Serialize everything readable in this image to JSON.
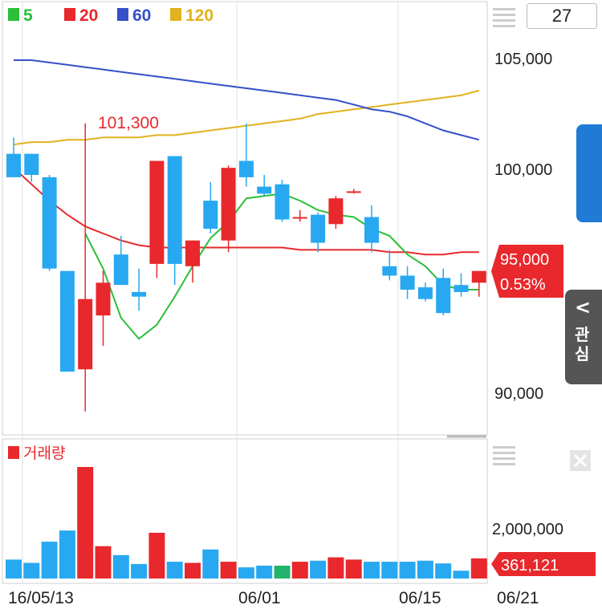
{
  "legend": [
    {
      "label": "5",
      "color": "#2bbf3a"
    },
    {
      "label": "20",
      "color": "#e8282c"
    },
    {
      "label": "60",
      "color": "#3550c8"
    },
    {
      "label": "120",
      "color": "#e0b21e"
    }
  ],
  "period_value": "27",
  "price_axis_labels": [
    "105,000",
    "100,000",
    "90,000"
  ],
  "high_marker": "101,300",
  "current_price": "95,000",
  "change_pct": "0.53%",
  "volume_label": "거래량",
  "volume_axis_label": "2,000,000",
  "current_volume": "361,121",
  "date_labels": [
    "16/05/13",
    "06/01",
    "06/15",
    "06/21"
  ],
  "side_tab_label": "관심",
  "colors": {
    "up": "#e8282c",
    "down": "#28a8f0",
    "flat": "#22b46a",
    "grid": "#d8d8d8"
  },
  "chart_data": {
    "type": "candlestick",
    "price_ylim": [
      88000,
      106500
    ],
    "candles": [
      {
        "o": 100000,
        "h": 100700,
        "l": 99000,
        "c": 99000
      },
      {
        "o": 100000,
        "h": 100000,
        "l": 98800,
        "c": 99100
      },
      {
        "o": 99000,
        "h": 99100,
        "l": 95000,
        "c": 95100
      },
      {
        "o": 95000,
        "h": 95000,
        "l": 90700,
        "c": 90700
      },
      {
        "o": 90800,
        "h": 101300,
        "l": 89000,
        "c": 93800
      },
      {
        "o": 93100,
        "h": 95000,
        "l": 91800,
        "c": 94500
      },
      {
        "o": 95700,
        "h": 96500,
        "l": 94400,
        "c": 94400
      },
      {
        "o": 94100,
        "h": 95100,
        "l": 93300,
        "c": 93900
      },
      {
        "o": 95300,
        "h": 99700,
        "l": 94700,
        "c": 99700
      },
      {
        "o": 99900,
        "h": 99900,
        "l": 94400,
        "c": 95300
      },
      {
        "o": 95200,
        "h": 96300,
        "l": 94500,
        "c": 96300
      },
      {
        "o": 98000,
        "h": 98800,
        "l": 96600,
        "c": 96800
      },
      {
        "o": 96300,
        "h": 99500,
        "l": 95800,
        "c": 99400
      },
      {
        "o": 99700,
        "h": 101300,
        "l": 98600,
        "c": 99000
      },
      {
        "o": 98600,
        "h": 99100,
        "l": 98200,
        "c": 98300
      },
      {
        "o": 98700,
        "h": 98900,
        "l": 97100,
        "c": 97200
      },
      {
        "o": 97300,
        "h": 97600,
        "l": 97100,
        "c": 97300
      },
      {
        "o": 97400,
        "h": 97500,
        "l": 95800,
        "c": 96200
      },
      {
        "o": 97000,
        "h": 98200,
        "l": 96800,
        "c": 98100
      },
      {
        "o": 98400,
        "h": 98500,
        "l": 98300,
        "c": 98400
      },
      {
        "o": 97300,
        "h": 97800,
        "l": 95800,
        "c": 96200
      },
      {
        "o": 95200,
        "h": 95900,
        "l": 94600,
        "c": 94800
      },
      {
        "o": 94800,
        "h": 95200,
        "l": 93800,
        "c": 94200
      },
      {
        "o": 94300,
        "h": 94500,
        "l": 93700,
        "c": 93800
      },
      {
        "o": 94700,
        "h": 95100,
        "l": 93100,
        "c": 93200
      },
      {
        "o": 94400,
        "h": 94900,
        "l": 93900,
        "c": 94100
      },
      {
        "o": 94500,
        "h": 95000,
        "l": 93900,
        "c": 95000
      }
    ],
    "ma5": [
      null,
      null,
      null,
      null,
      96600,
      95100,
      93000,
      92100,
      92700,
      93900,
      95200,
      96400,
      97100,
      98100,
      98200,
      98300,
      98000,
      97600,
      97400,
      97300,
      96800,
      96500,
      95700,
      95200,
      94400,
      94200,
      94200
    ],
    "ma20": [
      99400,
      98700,
      98000,
      97400,
      96900,
      96600,
      96300,
      96100,
      96000,
      96000,
      96000,
      96000,
      96000,
      96000,
      96000,
      96000,
      95900,
      95900,
      95900,
      95900,
      95900,
      95800,
      95800,
      95700,
      95700,
      95800,
      95800
    ],
    "ma60": [
      104000,
      104000,
      103900,
      103800,
      103700,
      103600,
      103500,
      103400,
      103300,
      103200,
      103100,
      103000,
      102900,
      102800,
      102700,
      102600,
      102500,
      102400,
      102300,
      102100,
      101900,
      101800,
      101600,
      101300,
      101000,
      100800,
      100600
    ],
    "ma120": [
      100400,
      100500,
      100500,
      100600,
      100600,
      100700,
      100700,
      100700,
      100800,
      100800,
      100900,
      101000,
      101100,
      101200,
      101300,
      101400,
      101500,
      101700,
      101800,
      101900,
      102000,
      102100,
      102200,
      102300,
      102400,
      102500,
      102700
    ],
    "volume": [
      340000,
      280000,
      660000,
      860000,
      2000000,
      580000,
      420000,
      260000,
      820000,
      300000,
      280000,
      520000,
      300000,
      200000,
      230000,
      230000,
      300000,
      320000,
      380000,
      340000,
      300000,
      300000,
      300000,
      320000,
      270000,
      140000,
      361121
    ],
    "volume_ylim": [
      0,
      2100000
    ],
    "flat_volume_index": 15
  }
}
